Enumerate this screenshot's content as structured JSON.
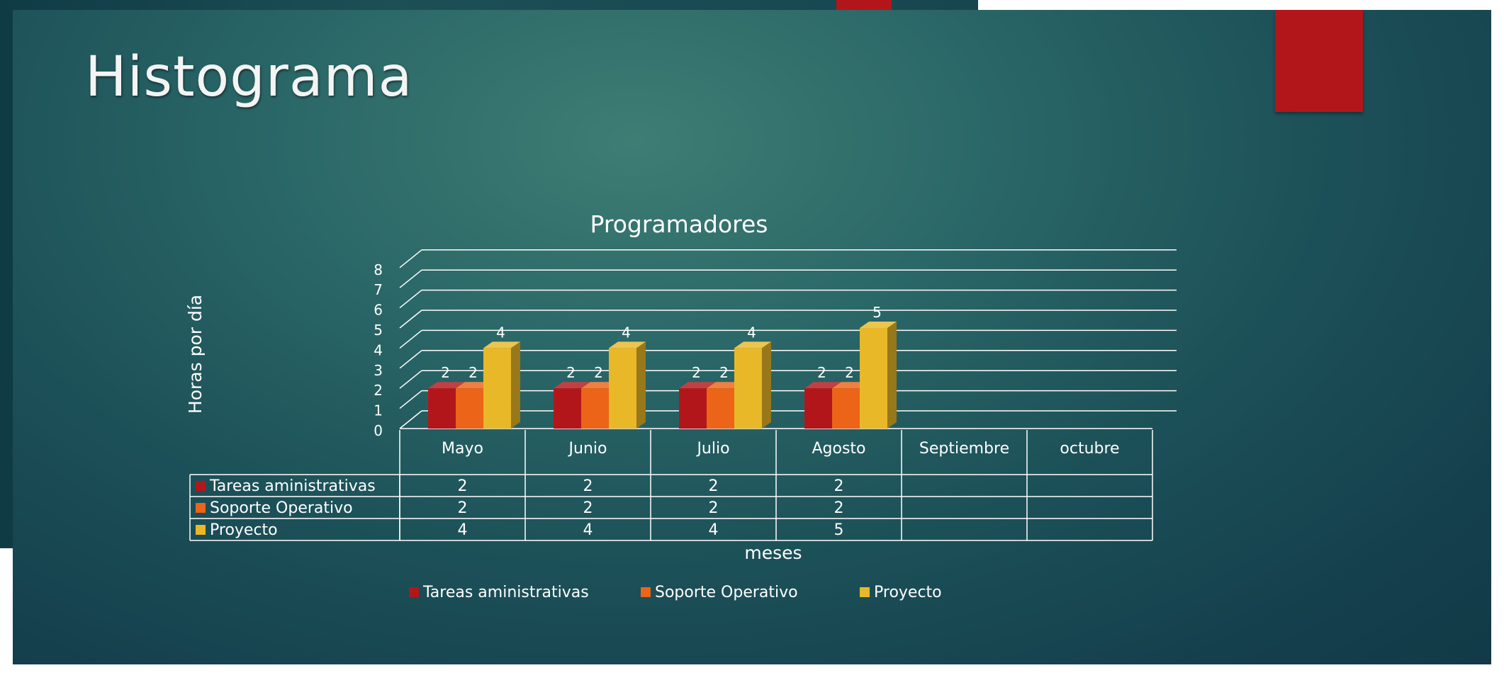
{
  "slide": {
    "title": "Histograma"
  },
  "colors": {
    "tareas": "#b3161a",
    "soporte": "#eb6418",
    "proyecto": "#e8b828",
    "accent": "#b3161a"
  },
  "chart_data": {
    "type": "bar",
    "title": "Programadores",
    "xlabel": "meses",
    "ylabel": "Horas por día",
    "ylim": [
      0,
      8
    ],
    "yticks": [
      "0",
      "1",
      "2",
      "3",
      "4",
      "5",
      "6",
      "7",
      "8"
    ],
    "categories": [
      "Mayo",
      "Junio",
      "Julio",
      "Agosto",
      "Septiembre",
      "octubre"
    ],
    "grid": true,
    "legend_position": "bottom",
    "data_table": true,
    "series": [
      {
        "name": "Tareas aministrativas",
        "values": [
          2,
          2,
          2,
          2,
          null,
          null
        ]
      },
      {
        "name": "Soporte Operativo",
        "values": [
          2,
          2,
          2,
          2,
          null,
          null
        ]
      },
      {
        "name": "Proyecto",
        "values": [
          4,
          4,
          4,
          5,
          null,
          null
        ]
      }
    ]
  }
}
